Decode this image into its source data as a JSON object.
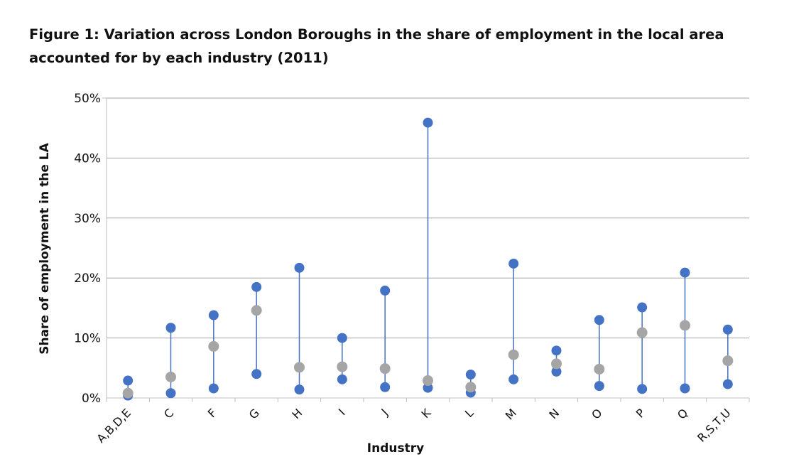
{
  "title": "Figure 1: Variation across London Boroughs in the share of employment in the local area accounted for by each industry (2011)",
  "chart_data": {
    "type": "scatter",
    "xlabel": "Industry",
    "ylabel": "Share of employment in the LA",
    "ylim": [
      0,
      50
    ],
    "yticks": [
      "0%",
      "10%",
      "20%",
      "30%",
      "40%",
      "50%"
    ],
    "grid": true,
    "categories": [
      "A,B,D,E",
      "C",
      "F",
      "G",
      "H",
      "I",
      "J",
      "K",
      "L",
      "M",
      "N",
      "O",
      "P",
      "Q",
      "R,S,T,U"
    ],
    "max": [
      2.9,
      11.7,
      13.8,
      18.5,
      21.7,
      10.0,
      17.9,
      45.9,
      3.9,
      22.4,
      7.9,
      13.0,
      15.1,
      20.9,
      11.4
    ],
    "min": [
      0.4,
      0.8,
      1.6,
      4.0,
      1.4,
      3.1,
      1.8,
      1.7,
      0.9,
      3.1,
      4.4,
      2.0,
      1.5,
      1.6,
      2.3
    ],
    "median": [
      0.8,
      3.5,
      8.6,
      14.6,
      5.1,
      5.2,
      4.9,
      2.9,
      1.8,
      7.2,
      5.7,
      4.8,
      10.9,
      12.1,
      6.2
    ],
    "colors": {
      "endpoints": "#4472C4",
      "median": "#A5A5A5",
      "line": "#4472C4",
      "grid": "#A6A6A6"
    }
  }
}
